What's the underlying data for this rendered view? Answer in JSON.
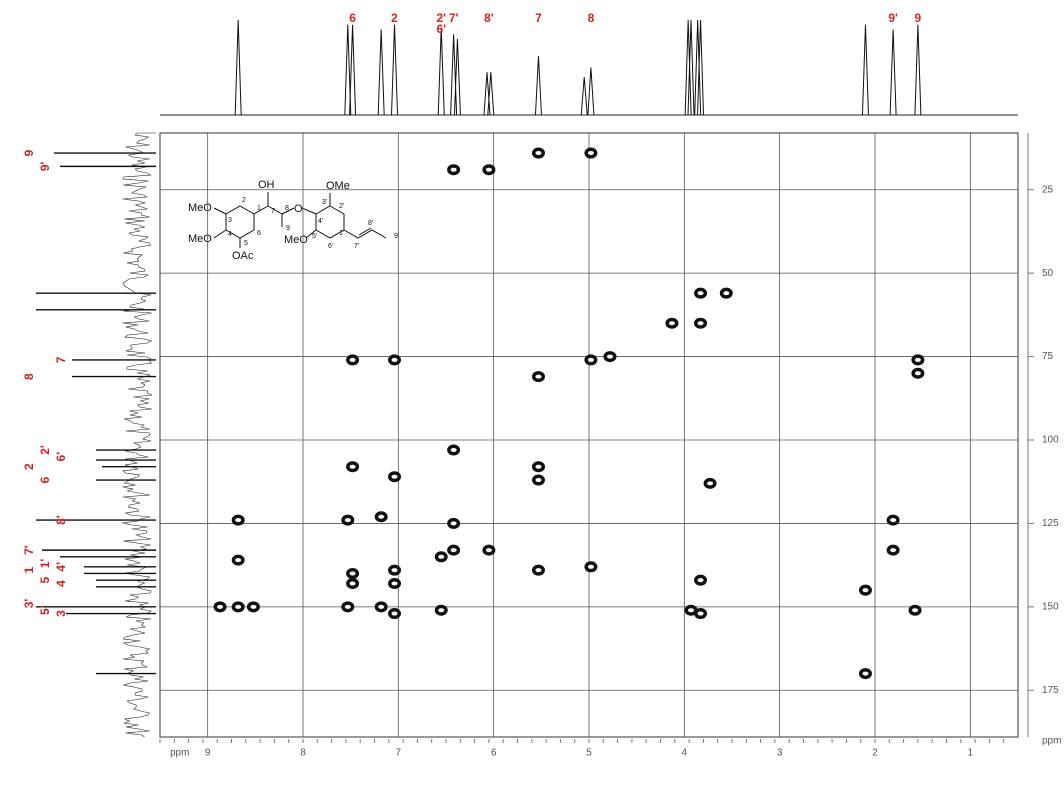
{
  "chart_data": {
    "type": "scatter",
    "x_label": "ppm",
    "y_label": "ppm",
    "xlim": [
      9.5,
      0.5
    ],
    "ylim": [
      8,
      189
    ],
    "xticks": [
      9,
      8,
      7,
      6,
      5,
      4,
      3,
      2,
      1
    ],
    "yticks": [
      25,
      50,
      75,
      100,
      125,
      150,
      175
    ],
    "grid": true,
    "color": "#111111",
    "label_color": "#d42020",
    "x": [
      5.53,
      4.98,
      6.42,
      6.05,
      7.48,
      7.04,
      4.98,
      4.78,
      5.53,
      1.55,
      1.55,
      4.13,
      3.83,
      3.83,
      3.56,
      6.42,
      7.48,
      5.53,
      7.04,
      5.53,
      3.73,
      8.68,
      7.18,
      7.53,
      6.42,
      1.81,
      8.68,
      6.55,
      6.42,
      6.05,
      1.81,
      7.48,
      7.48,
      7.04,
      7.04,
      5.53,
      4.98,
      3.83,
      2.1,
      8.87,
      8.68,
      8.52,
      7.53,
      7.18,
      7.04,
      6.55,
      3.93,
      3.83,
      1.58,
      2.1
    ],
    "values": [
      14,
      14,
      19,
      19,
      76,
      76,
      76,
      75,
      81,
      76,
      80,
      65,
      56,
      65,
      56,
      103,
      108,
      108,
      111,
      112,
      113,
      124,
      123,
      124,
      125,
      124,
      136,
      135,
      133,
      133,
      133,
      140,
      143,
      139,
      143,
      139,
      138,
      142,
      145,
      150,
      150,
      150,
      150,
      150,
      152,
      151,
      151,
      152,
      151,
      170
    ],
    "h_peaks": {
      "x": [
        8.68,
        7.53,
        7.48,
        7.18,
        7.04,
        6.55,
        6.42,
        6.38,
        6.07,
        6.03,
        5.53,
        5.05,
        4.98,
        3.96,
        3.93,
        3.86,
        3.83,
        2.1,
        1.81,
        1.55
      ],
      "heights": [
        100,
        95,
        95,
        90,
        95,
        92,
        85,
        80,
        45,
        45,
        62,
        40,
        50,
        100,
        100,
        100,
        100,
        95,
        90,
        95
      ]
    },
    "c_peaks": {
      "y": [
        14,
        18,
        56,
        61,
        76,
        81,
        103,
        106,
        108,
        112,
        124,
        133,
        135,
        138,
        140,
        142,
        144,
        150,
        152,
        170
      ],
      "heights": [
        85,
        80,
        100,
        100,
        70,
        70,
        50,
        50,
        45,
        50,
        100,
        95,
        80,
        60,
        60,
        50,
        50,
        100,
        75,
        50
      ]
    },
    "h_labels": {
      "labels": [
        "6",
        "2",
        "2'",
        "6'",
        "7'",
        "8'",
        "7",
        "8",
        "9'",
        "9"
      ],
      "x": [
        7.48,
        7.04,
        6.55,
        6.55,
        6.42,
        6.05,
        5.53,
        4.98,
        1.81,
        1.55
      ]
    },
    "c_labels": {
      "labels": [
        "9",
        "9'",
        "7",
        "8",
        "2'",
        "6'",
        "2",
        "6",
        "8'",
        "7'",
        "1'",
        "4'",
        "1",
        "5",
        "4",
        "3'",
        "5'",
        "3"
      ],
      "y": [
        14,
        18,
        76,
        81,
        103,
        105,
        108,
        112,
        124,
        133,
        137,
        138,
        139,
        142,
        143,
        149,
        151,
        152
      ]
    }
  },
  "structure": {
    "labels": [
      "MeO",
      "MeO",
      "OAc",
      "OH",
      "O",
      "OMe",
      "MeO",
      "1",
      "2",
      "3",
      "4",
      "5",
      "6",
      "7",
      "8",
      "9",
      "1'",
      "2'",
      "3'",
      "4'",
      "5'",
      "6'",
      "7'",
      "8'",
      "9'"
    ]
  }
}
